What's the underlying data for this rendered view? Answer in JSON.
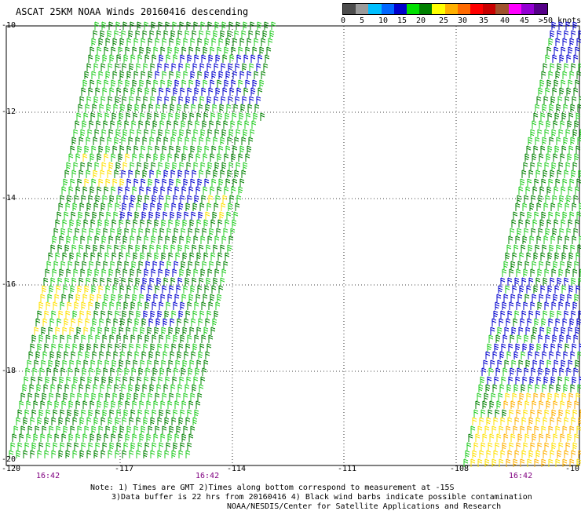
{
  "title": "ASCAT 25KM NOAA Winds 20160416 descending",
  "colorbar": {
    "labels": [
      "0",
      "5",
      "10",
      "15",
      "20",
      "25",
      "30",
      "35",
      "40",
      "45",
      ">50 knots"
    ],
    "colors": [
      "#4d4d4d",
      "#9b9b9b",
      "#00bfff",
      "#0066ff",
      "#0000cd",
      "#00e000",
      "#008000",
      "#ffff00",
      "#ffb000",
      "#ff6a00",
      "#ff0000",
      "#c80000",
      "#a0522d",
      "#ff00ff",
      "#9400d3",
      "#550088"
    ]
  },
  "axes": {
    "lat_labels": [
      "-10",
      "-12",
      "-14",
      "-16",
      "-18",
      "-20"
    ],
    "lon_labels": [
      "-120",
      "-117",
      "-114",
      "-111",
      "-108",
      "-10"
    ]
  },
  "times": [
    "16:42",
    "16:42",
    "16:42"
  ],
  "notes": {
    "line1": "Note: 1) Times are GMT 2)Times along bottom correspond to measurement at -15S",
    "line2": "3)Data buffer is 22 hrs from 20160416 4) Black wind barbs indicate possible contamination",
    "line3": "NOAA/NESDIS/Center for Satellite Applications and Research"
  },
  "wind_colors": {
    "blue": "#0000cd",
    "green_light": "#22cc22",
    "green_dark": "#008000",
    "yellow": "#ffe000",
    "orange": "#ffb000"
  }
}
